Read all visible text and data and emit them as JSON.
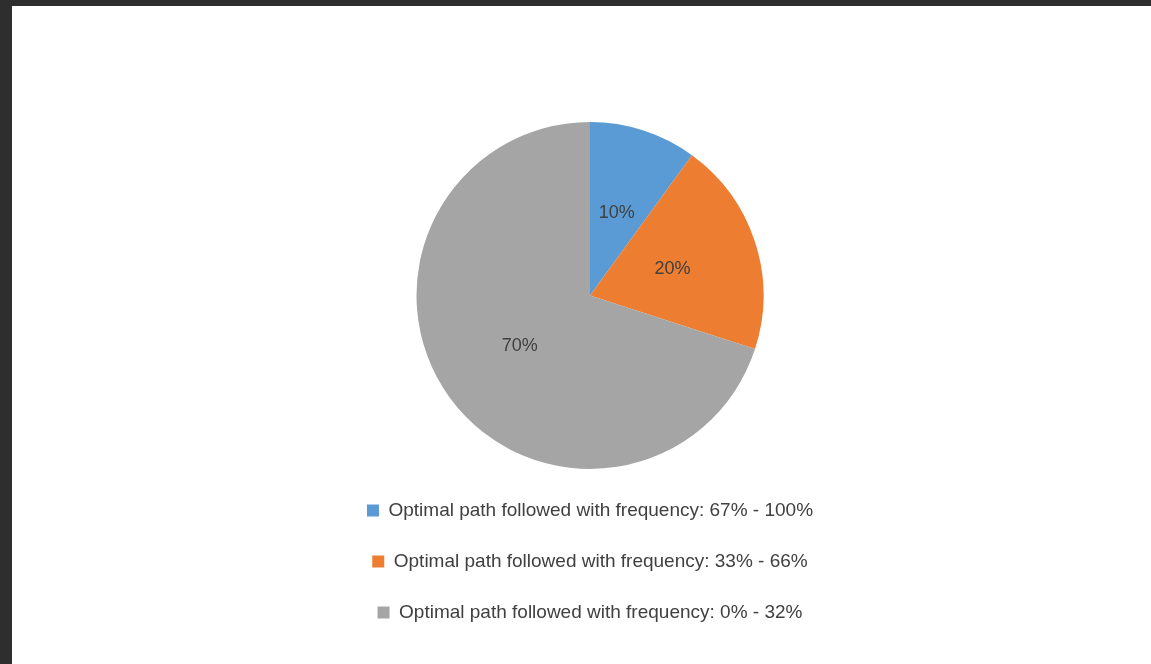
{
  "chart_data": {
    "type": "pie",
    "categories": [
      "Optimal path followed with frequency: 67% - 100%",
      "Optimal path followed with frequency: 33% - 66%",
      "Optimal path followed with frequency: 0% - 32%"
    ],
    "values": [
      10,
      20,
      70
    ],
    "colors": [
      "#5b9bd5",
      "#ed7d31",
      "#a5a5a5"
    ],
    "value_labels": [
      "10%",
      "20%",
      "70%"
    ],
    "legend": "bottom"
  }
}
